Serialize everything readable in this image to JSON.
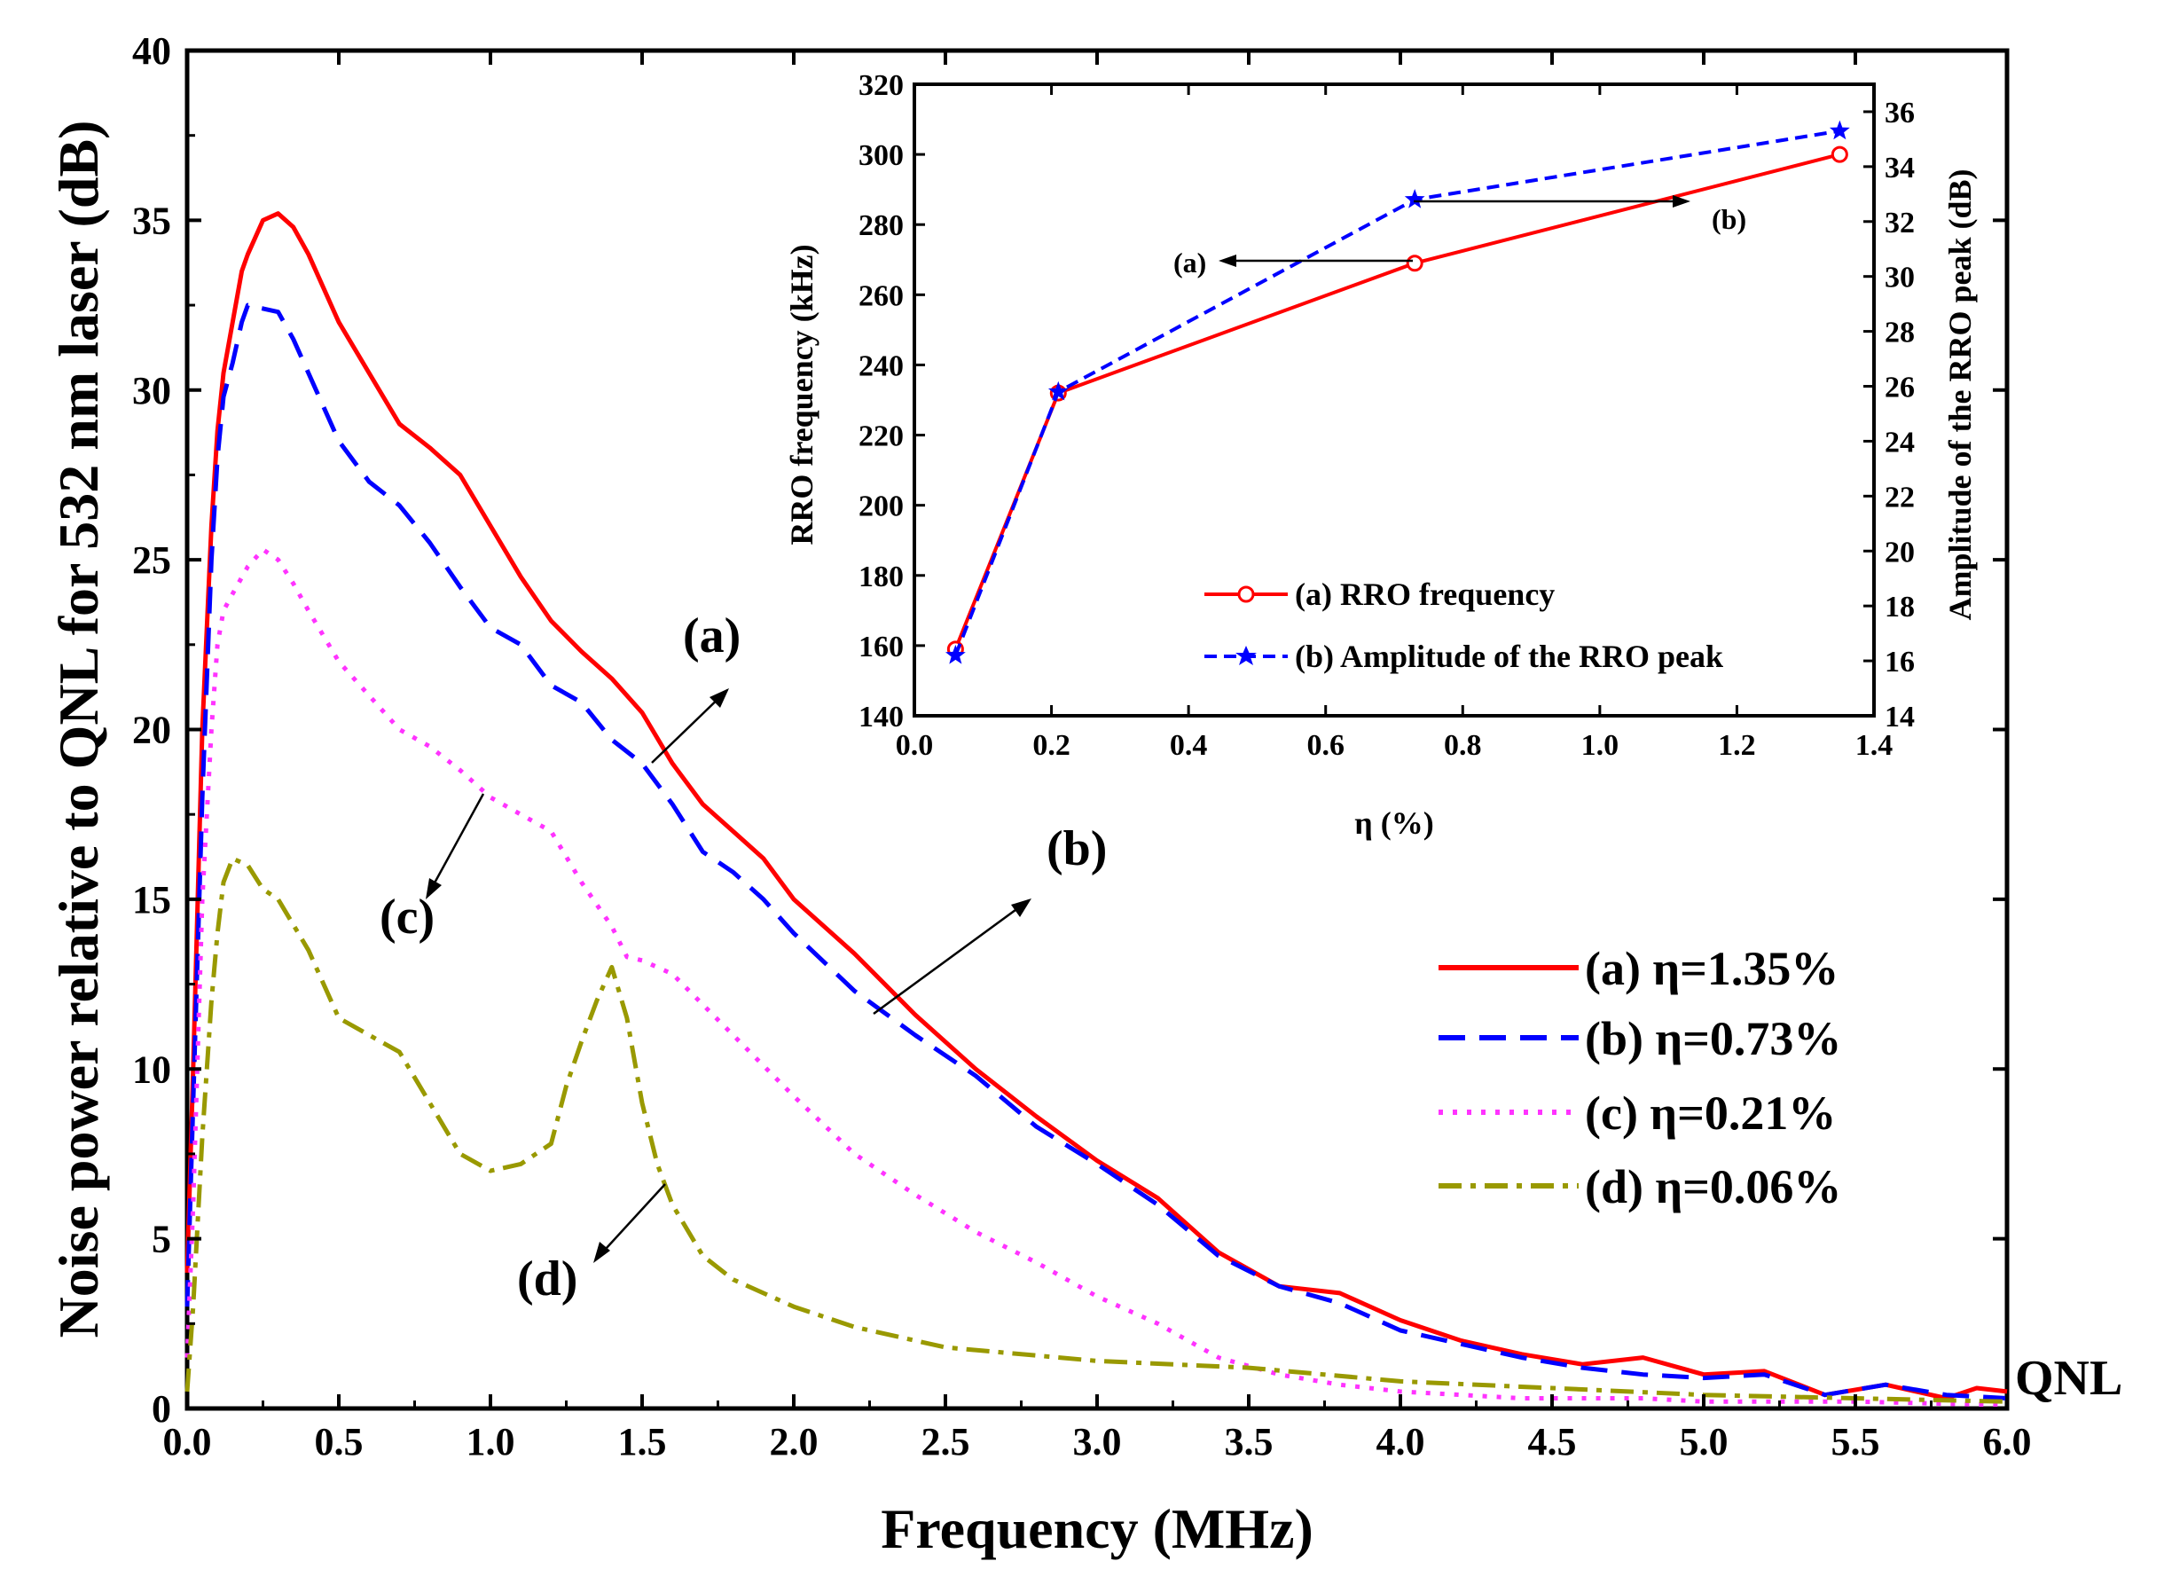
{
  "chart_data": [
    {
      "type": "line",
      "xlabel": "Frequency (MHz)",
      "ylabel": "Noise power relative to QNL for 532 nm laser (dB)",
      "xlim": [
        0.0,
        6.0
      ],
      "ylim": [
        0,
        40
      ],
      "xticks": [
        "0.0",
        "0.5",
        "1.0",
        "1.5",
        "2.0",
        "2.5",
        "3.0",
        "3.5",
        "4.0",
        "4.5",
        "5.0",
        "5.5",
        "6.0"
      ],
      "yticks": [
        "0",
        "5",
        "10",
        "15",
        "20",
        "25",
        "30",
        "35",
        "40"
      ],
      "series": [
        {
          "name": "(a) η=1.35%",
          "color": "#ff0000",
          "style": "solid",
          "x": [
            0.0,
            0.02,
            0.05,
            0.08,
            0.1,
            0.12,
            0.15,
            0.18,
            0.2,
            0.25,
            0.3,
            0.35,
            0.4,
            0.5,
            0.6,
            0.7,
            0.8,
            0.9,
            1.0,
            1.1,
            1.2,
            1.3,
            1.4,
            1.5,
            1.6,
            1.7,
            1.8,
            1.9,
            2.0,
            2.2,
            2.4,
            2.6,
            2.8,
            3.0,
            3.2,
            3.4,
            3.6,
            3.8,
            4.0,
            4.2,
            4.4,
            4.6,
            4.8,
            5.0,
            5.2,
            5.4,
            5.6,
            5.8,
            5.9,
            6.0
          ],
          "y": [
            4.0,
            10.0,
            20.0,
            26.0,
            28.8,
            30.5,
            32.0,
            33.5,
            34.0,
            35.0,
            35.2,
            34.8,
            34.0,
            32.0,
            30.5,
            29.0,
            28.3,
            27.5,
            26.0,
            24.5,
            23.2,
            22.3,
            21.5,
            20.5,
            19.0,
            17.8,
            17.0,
            16.2,
            15.0,
            13.4,
            11.6,
            10.0,
            8.6,
            7.3,
            6.2,
            4.6,
            3.6,
            3.4,
            2.6,
            2.0,
            1.6,
            1.3,
            1.5,
            1.0,
            1.1,
            0.4,
            0.7,
            0.3,
            0.6,
            0.5
          ]
        },
        {
          "name": "(b) η=0.73%",
          "color": "#0000ff",
          "style": "dash",
          "x": [
            0.0,
            0.02,
            0.05,
            0.08,
            0.1,
            0.12,
            0.15,
            0.18,
            0.2,
            0.25,
            0.3,
            0.35,
            0.4,
            0.5,
            0.6,
            0.7,
            0.8,
            0.9,
            1.0,
            1.1,
            1.2,
            1.3,
            1.4,
            1.5,
            1.6,
            1.7,
            1.8,
            1.9,
            2.0,
            2.2,
            2.4,
            2.6,
            2.8,
            3.0,
            3.2,
            3.4,
            3.6,
            3.8,
            4.0,
            4.2,
            4.4,
            4.6,
            4.8,
            5.0,
            5.2,
            5.4,
            5.6,
            5.8,
            6.0
          ],
          "y": [
            3.0,
            9.0,
            18.0,
            25.0,
            28.0,
            29.8,
            30.8,
            32.0,
            32.5,
            32.4,
            32.3,
            31.5,
            30.5,
            28.5,
            27.3,
            26.6,
            25.5,
            24.2,
            23.0,
            22.5,
            21.3,
            20.8,
            19.7,
            19.0,
            17.8,
            16.4,
            15.8,
            15.0,
            14.0,
            12.3,
            11.0,
            9.8,
            8.3,
            7.2,
            6.0,
            4.5,
            3.6,
            3.1,
            2.3,
            1.9,
            1.5,
            1.2,
            1.0,
            0.9,
            1.0,
            0.4,
            0.7,
            0.4,
            0.3
          ]
        },
        {
          "name": "(c) η=0.21%",
          "color": "#ff33ff",
          "style": "dot",
          "x": [
            0.0,
            0.02,
            0.05,
            0.08,
            0.1,
            0.12,
            0.15,
            0.2,
            0.25,
            0.3,
            0.35,
            0.4,
            0.5,
            0.6,
            0.7,
            0.8,
            0.9,
            1.0,
            1.1,
            1.2,
            1.3,
            1.4,
            1.45,
            1.5,
            1.6,
            1.8,
            2.0,
            2.2,
            2.4,
            2.6,
            2.8,
            3.0,
            3.2,
            3.4,
            3.6,
            3.8,
            4.0,
            4.2,
            4.4,
            4.6,
            4.8,
            5.0,
            5.5,
            6.0
          ],
          "y": [
            1.5,
            6.0,
            15.0,
            20.0,
            22.5,
            23.5,
            24.0,
            24.8,
            25.3,
            25.0,
            24.3,
            23.5,
            22.0,
            21.0,
            20.0,
            19.5,
            18.8,
            18.0,
            17.5,
            17.0,
            15.5,
            14.2,
            13.3,
            13.2,
            12.8,
            11.0,
            9.2,
            7.5,
            6.3,
            5.2,
            4.3,
            3.3,
            2.5,
            1.5,
            1.0,
            0.7,
            0.5,
            0.4,
            0.3,
            0.3,
            0.3,
            0.2,
            0.2,
            0.1
          ]
        },
        {
          "name": "(d) η=0.06%",
          "color": "#999900",
          "style": "dashdot",
          "x": [
            0.0,
            0.02,
            0.05,
            0.08,
            0.1,
            0.12,
            0.15,
            0.2,
            0.25,
            0.3,
            0.4,
            0.5,
            0.6,
            0.7,
            0.8,
            0.9,
            1.0,
            1.1,
            1.2,
            1.25,
            1.3,
            1.35,
            1.4,
            1.45,
            1.5,
            1.55,
            1.6,
            1.7,
            1.8,
            2.0,
            2.2,
            2.5,
            3.0,
            3.5,
            4.0,
            4.5,
            5.0,
            5.5,
            6.0
          ],
          "y": [
            0.5,
            3.0,
            8.0,
            12.0,
            14.0,
            15.5,
            16.2,
            16.0,
            15.3,
            15.0,
            13.5,
            11.5,
            11.0,
            10.5,
            9.0,
            7.5,
            7.0,
            7.2,
            7.8,
            9.5,
            10.8,
            12.0,
            13.0,
            11.5,
            9.0,
            7.2,
            6.0,
            4.5,
            3.8,
            3.0,
            2.4,
            1.8,
            1.4,
            1.2,
            0.8,
            0.6,
            0.4,
            0.3,
            0.2
          ]
        }
      ],
      "legend_position": "right-middle",
      "annotations": {
        "a": "(a)",
        "b": "(b)",
        "c": "(c)",
        "d": "(d)",
        "qnl": "QNL"
      }
    },
    {
      "type": "line",
      "xlabel": "η (%)",
      "ylabel": "RRO frequency (kHz)",
      "ylabel_right": "Amplitude of the RRO peak (dB)",
      "xlim": [
        0.0,
        1.4
      ],
      "ylim": [
        140,
        320
      ],
      "ylim_right": [
        14,
        37
      ],
      "xticks": [
        "0.0",
        "0.2",
        "0.4",
        "0.6",
        "0.8",
        "1.0",
        "1.2",
        "1.4"
      ],
      "yticks": [
        "140",
        "160",
        "180",
        "200",
        "220",
        "240",
        "260",
        "280",
        "300",
        "320"
      ],
      "yticks_right": [
        "14",
        "16",
        "18",
        "20",
        "22",
        "24",
        "26",
        "28",
        "30",
        "32",
        "34",
        "36"
      ],
      "series": [
        {
          "name": "(a) RRO frequency",
          "color": "#ff0000",
          "style": "solid",
          "marker": "circle",
          "axis": "left",
          "x": [
            0.06,
            0.21,
            0.73,
            1.35
          ],
          "y": [
            159,
            232,
            269,
            300
          ]
        },
        {
          "name": "(b) Amplitude of the RRO peak",
          "color": "#0000ff",
          "style": "dash",
          "marker": "star",
          "axis": "right",
          "x": [
            0.06,
            0.21,
            0.73,
            1.35
          ],
          "y": [
            16.2,
            25.8,
            32.8,
            35.3
          ]
        }
      ],
      "legend_position": "bottom-right",
      "annotations": {
        "a": "(a)",
        "b": "(b)"
      }
    }
  ]
}
